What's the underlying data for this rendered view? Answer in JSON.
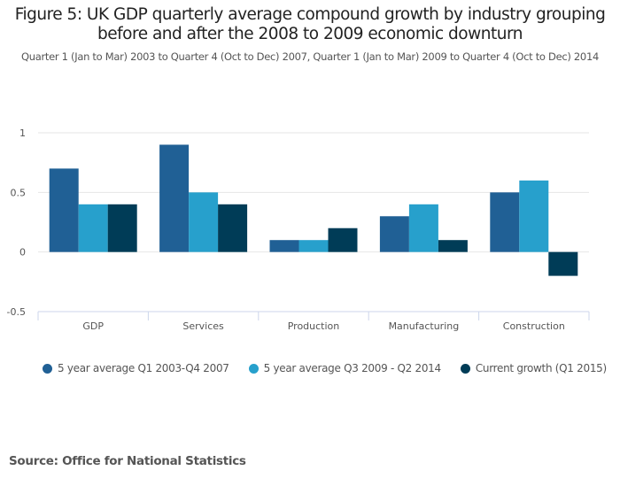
{
  "chart_data": {
    "type": "bar",
    "title": "Figure 5: UK GDP quarterly average compound growth by industry grouping before and after the 2008 to 2009 economic downturn",
    "subtitle": "Quarter 1 (Jan to Mar) 2003 to Quarter 4 (Oct to Dec) 2007, Quarter 1 (Jan to Mar) 2009 to Quarter 4 (Oct to Dec) 2014",
    "xlabel": "",
    "ylabel": "",
    "ylim": [
      -0.5,
      1
    ],
    "yticks": [
      1,
      0.5,
      0,
      -0.5
    ],
    "ytick_labels": [
      "1",
      "0.5",
      "0",
      "-0.5"
    ],
    "grid": true,
    "legend_position": "bottom",
    "categories": [
      "GDP",
      "Services",
      "Production",
      "Manufacturing",
      "Construction"
    ],
    "series": [
      {
        "name": "5 year average Q1 2003-Q4 2007",
        "color": "#206095",
        "values": [
          0.7,
          0.9,
          0.1,
          0.3,
          0.5
        ]
      },
      {
        "name": "5 year average Q3 2009 - Q2 2014",
        "color": "#27a0cc",
        "values": [
          0.4,
          0.5,
          0.1,
          0.4,
          0.6
        ]
      },
      {
        "name": "Current growth (Q1 2015)",
        "color": "#003c57",
        "values": [
          0.4,
          0.4,
          0.2,
          0.1,
          -0.2
        ]
      }
    ]
  },
  "source": "Source: Office for National Statistics"
}
